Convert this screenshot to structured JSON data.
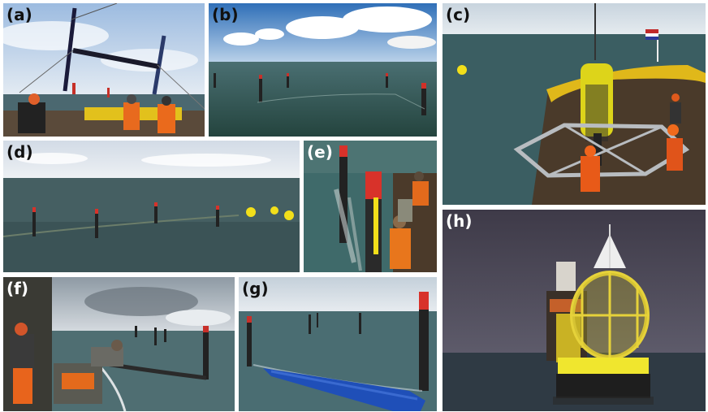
{
  "figure": {
    "panels": [
      {
        "label": "(a)"
      },
      {
        "label": "(b)"
      },
      {
        "label": "(c)"
      },
      {
        "label": "(d)"
      },
      {
        "label": "(e)"
      },
      {
        "label": "(f)"
      },
      {
        "label": "(g)"
      },
      {
        "label": "(h)"
      }
    ]
  },
  "colors": {
    "sea": "#3d5f63",
    "sky": "#cfe0ee",
    "pole_red": "#d8322a",
    "buoy_yellow": "#f2df1a",
    "net_blue": "#1f4fb8",
    "safety_orange": "#f0641c"
  }
}
